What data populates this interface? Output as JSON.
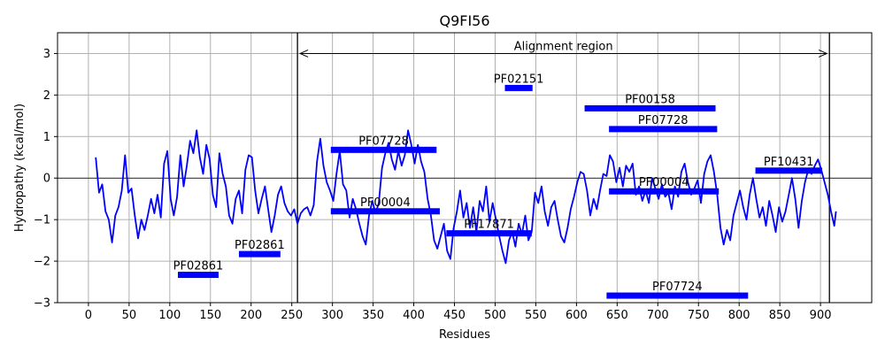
{
  "chart_data": {
    "type": "line",
    "title": "Q9FI56",
    "xlabel": "Residues",
    "ylabel": "Hydropathy (kcal/mol)",
    "xlim": [
      -38,
      963
    ],
    "ylim": [
      -3,
      3.5
    ],
    "xticks": [
      0,
      50,
      100,
      150,
      200,
      250,
      300,
      350,
      400,
      450,
      500,
      550,
      600,
      650,
      700,
      750,
      800,
      850,
      900
    ],
    "yticks": [
      -3,
      -2,
      -1,
      0,
      1,
      2,
      3
    ],
    "grid": true,
    "line_color": "#0000ff",
    "bar_color": "#0000ff",
    "alignment_region": {
      "label": "Alignment region",
      "start": 257,
      "end": 911,
      "y": 3.0
    },
    "series": [
      {
        "points": [
          [
            9,
            0.5
          ],
          [
            13,
            -0.35
          ],
          [
            17,
            -0.15
          ],
          [
            21,
            -0.8
          ],
          [
            25,
            -1.0
          ],
          [
            29,
            -1.55
          ],
          [
            33,
            -0.9
          ],
          [
            37,
            -0.7
          ],
          [
            41,
            -0.3
          ],
          [
            45,
            0.55
          ],
          [
            49,
            -0.35
          ],
          [
            53,
            -0.25
          ],
          [
            57,
            -0.9
          ],
          [
            61,
            -1.45
          ],
          [
            65,
            -1.0
          ],
          [
            69,
            -1.25
          ],
          [
            73,
            -0.9
          ],
          [
            77,
            -0.5
          ],
          [
            81,
            -0.85
          ],
          [
            85,
            -0.4
          ],
          [
            89,
            -0.95
          ],
          [
            93,
            0.35
          ],
          [
            97,
            0.65
          ],
          [
            101,
            -0.5
          ],
          [
            105,
            -0.9
          ],
          [
            109,
            -0.45
          ],
          [
            113,
            0.55
          ],
          [
            117,
            -0.2
          ],
          [
            121,
            0.3
          ],
          [
            125,
            0.9
          ],
          [
            129,
            0.6
          ],
          [
            133,
            1.15
          ],
          [
            137,
            0.5
          ],
          [
            141,
            0.1
          ],
          [
            145,
            0.8
          ],
          [
            149,
            0.45
          ],
          [
            153,
            -0.4
          ],
          [
            157,
            -0.7
          ],
          [
            161,
            0.6
          ],
          [
            165,
            0.1
          ],
          [
            169,
            -0.2
          ],
          [
            173,
            -0.9
          ],
          [
            177,
            -1.1
          ],
          [
            181,
            -0.5
          ],
          [
            185,
            -0.3
          ],
          [
            189,
            -0.85
          ],
          [
            193,
            0.2
          ],
          [
            197,
            0.55
          ],
          [
            201,
            0.5
          ],
          [
            205,
            -0.3
          ],
          [
            209,
            -0.85
          ],
          [
            213,
            -0.5
          ],
          [
            217,
            -0.2
          ],
          [
            221,
            -0.75
          ],
          [
            225,
            -1.3
          ],
          [
            229,
            -0.9
          ],
          [
            233,
            -0.4
          ],
          [
            237,
            -0.2
          ],
          [
            241,
            -0.6
          ],
          [
            245,
            -0.8
          ],
          [
            249,
            -0.9
          ],
          [
            253,
            -0.75
          ],
          [
            257,
            -1.1
          ],
          [
            261,
            -0.85
          ],
          [
            265,
            -0.75
          ],
          [
            269,
            -0.7
          ],
          [
            273,
            -0.9
          ],
          [
            277,
            -0.65
          ],
          [
            281,
            0.4
          ],
          [
            285,
            0.95
          ],
          [
            289,
            0.3
          ],
          [
            293,
            -0.1
          ],
          [
            297,
            -0.3
          ],
          [
            301,
            -0.55
          ],
          [
            305,
            0.1
          ],
          [
            309,
            0.65
          ],
          [
            313,
            -0.15
          ],
          [
            317,
            -0.3
          ],
          [
            321,
            -0.95
          ],
          [
            325,
            -0.5
          ],
          [
            329,
            -0.75
          ],
          [
            333,
            -1.1
          ],
          [
            337,
            -1.4
          ],
          [
            341,
            -1.6
          ],
          [
            345,
            -0.9
          ],
          [
            349,
            -0.55
          ],
          [
            353,
            -0.85
          ],
          [
            357,
            -0.6
          ],
          [
            361,
            0.25
          ],
          [
            365,
            0.6
          ],
          [
            369,
            0.85
          ],
          [
            373,
            0.45
          ],
          [
            377,
            0.2
          ],
          [
            381,
            0.65
          ],
          [
            385,
            0.3
          ],
          [
            389,
            0.55
          ],
          [
            393,
            1.15
          ],
          [
            397,
            0.8
          ],
          [
            401,
            0.35
          ],
          [
            405,
            0.8
          ],
          [
            409,
            0.4
          ],
          [
            413,
            0.15
          ],
          [
            417,
            -0.5
          ],
          [
            421,
            -0.9
          ],
          [
            425,
            -1.5
          ],
          [
            429,
            -1.7
          ],
          [
            433,
            -1.4
          ],
          [
            437,
            -1.1
          ],
          [
            441,
            -1.75
          ],
          [
            445,
            -1.95
          ],
          [
            449,
            -1.2
          ],
          [
            453,
            -0.8
          ],
          [
            457,
            -0.3
          ],
          [
            461,
            -0.95
          ],
          [
            465,
            -0.6
          ],
          [
            469,
            -1.2
          ],
          [
            473,
            -0.7
          ],
          [
            477,
            -1.3
          ],
          [
            481,
            -0.55
          ],
          [
            485,
            -0.8
          ],
          [
            489,
            -0.2
          ],
          [
            493,
            -1.05
          ],
          [
            497,
            -0.6
          ],
          [
            501,
            -1.0
          ],
          [
            505,
            -1.4
          ],
          [
            509,
            -1.75
          ],
          [
            513,
            -2.05
          ],
          [
            517,
            -1.5
          ],
          [
            521,
            -1.3
          ],
          [
            525,
            -1.65
          ],
          [
            529,
            -1.1
          ],
          [
            533,
            -1.35
          ],
          [
            537,
            -0.9
          ],
          [
            541,
            -1.5
          ],
          [
            545,
            -1.3
          ],
          [
            549,
            -0.35
          ],
          [
            553,
            -0.6
          ],
          [
            557,
            -0.2
          ],
          [
            561,
            -0.8
          ],
          [
            565,
            -1.15
          ],
          [
            569,
            -0.7
          ],
          [
            573,
            -0.55
          ],
          [
            577,
            -1.0
          ],
          [
            581,
            -1.4
          ],
          [
            585,
            -1.55
          ],
          [
            589,
            -1.2
          ],
          [
            593,
            -0.75
          ],
          [
            597,
            -0.45
          ],
          [
            601,
            -0.1
          ],
          [
            605,
            0.15
          ],
          [
            609,
            0.1
          ],
          [
            613,
            -0.3
          ],
          [
            617,
            -0.9
          ],
          [
            621,
            -0.5
          ],
          [
            625,
            -0.75
          ],
          [
            629,
            -0.3
          ],
          [
            633,
            0.1
          ],
          [
            637,
            0.05
          ],
          [
            641,
            0.55
          ],
          [
            645,
            0.4
          ],
          [
            649,
            -0.1
          ],
          [
            653,
            0.25
          ],
          [
            657,
            -0.2
          ],
          [
            661,
            0.3
          ],
          [
            665,
            0.15
          ],
          [
            669,
            0.35
          ],
          [
            673,
            -0.4
          ],
          [
            677,
            -0.2
          ],
          [
            681,
            -0.55
          ],
          [
            685,
            -0.3
          ],
          [
            689,
            -0.6
          ],
          [
            693,
            0.0
          ],
          [
            697,
            -0.25
          ],
          [
            701,
            -0.5
          ],
          [
            705,
            -0.15
          ],
          [
            709,
            -0.45
          ],
          [
            713,
            -0.35
          ],
          [
            717,
            -0.75
          ],
          [
            721,
            -0.2
          ],
          [
            725,
            -0.45
          ],
          [
            729,
            0.15
          ],
          [
            733,
            0.35
          ],
          [
            737,
            -0.1
          ],
          [
            741,
            -0.4
          ],
          [
            745,
            -0.25
          ],
          [
            749,
            -0.05
          ],
          [
            753,
            -0.6
          ],
          [
            757,
            0.1
          ],
          [
            761,
            0.4
          ],
          [
            765,
            0.55
          ],
          [
            769,
            0.15
          ],
          [
            773,
            -0.4
          ],
          [
            777,
            -1.2
          ],
          [
            781,
            -1.6
          ],
          [
            785,
            -1.25
          ],
          [
            789,
            -1.5
          ],
          [
            793,
            -0.9
          ],
          [
            797,
            -0.6
          ],
          [
            801,
            -0.3
          ],
          [
            805,
            -0.7
          ],
          [
            809,
            -1.0
          ],
          [
            813,
            -0.4
          ],
          [
            817,
            0.0
          ],
          [
            821,
            -0.5
          ],
          [
            825,
            -0.95
          ],
          [
            829,
            -0.7
          ],
          [
            833,
            -1.15
          ],
          [
            837,
            -0.55
          ],
          [
            841,
            -0.9
          ],
          [
            845,
            -1.3
          ],
          [
            849,
            -0.7
          ],
          [
            853,
            -1.05
          ],
          [
            857,
            -0.8
          ],
          [
            861,
            -0.4
          ],
          [
            865,
            0.0
          ],
          [
            869,
            -0.5
          ],
          [
            873,
            -1.2
          ],
          [
            877,
            -0.55
          ],
          [
            881,
            -0.1
          ],
          [
            885,
            0.2
          ],
          [
            889,
            0.1
          ],
          [
            893,
            0.3
          ],
          [
            897,
            0.45
          ],
          [
            901,
            0.2
          ],
          [
            905,
            -0.1
          ],
          [
            909,
            -0.4
          ],
          [
            913,
            -0.8
          ],
          [
            917,
            -1.15
          ],
          [
            919,
            -0.8
          ]
        ]
      }
    ],
    "domains": [
      {
        "label": "PF02861",
        "start": 110,
        "end": 160,
        "y": -2.33
      },
      {
        "label": "PF02861",
        "start": 185,
        "end": 236,
        "y": -1.83
      },
      {
        "label": "PF07728",
        "start": 298,
        "end": 428,
        "y": 0.68
      },
      {
        "label": "PF00004",
        "start": 298,
        "end": 432,
        "y": -0.8
      },
      {
        "label": "PF17871",
        "start": 440,
        "end": 545,
        "y": -1.33
      },
      {
        "label": "PF02151",
        "start": 512,
        "end": 546,
        "y": 2.17
      },
      {
        "label": "PF00158",
        "start": 610,
        "end": 771,
        "y": 1.68
      },
      {
        "label": "PF07728",
        "start": 640,
        "end": 773,
        "y": 1.18
      },
      {
        "label": "PF00004",
        "start": 640,
        "end": 775,
        "y": -0.32
      },
      {
        "label": "PF10431",
        "start": 820,
        "end": 902,
        "y": 0.18
      },
      {
        "label": "PF07724",
        "start": 637,
        "end": 811,
        "y": -2.83
      }
    ]
  }
}
